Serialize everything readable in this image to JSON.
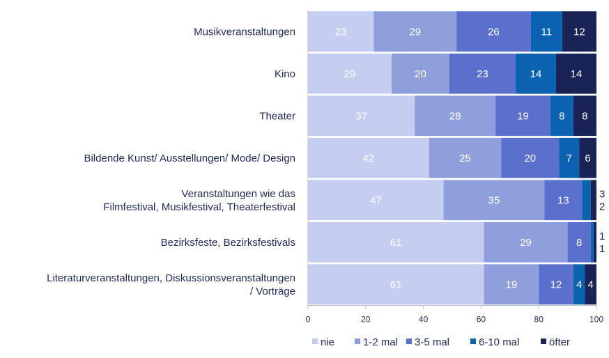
{
  "chart_data": {
    "type": "bar",
    "orientation": "horizontal",
    "stacked": true,
    "categories": [
      [
        "Musikveranstaltungen"
      ],
      [
        "Kino"
      ],
      [
        "Theater"
      ],
      [
        "Bildende Kunst/ Ausstellungen/ Mode/ Design"
      ],
      [
        "Veranstaltungen wie das",
        "Filmfestival, Musikfestival, Theaterfestival"
      ],
      [
        "Bezirksfeste, Bezirksfestivals"
      ],
      [
        "Literaturveranstaltungen, Diskussionsveranstaltungen",
        "/ Vorträge"
      ]
    ],
    "series": [
      {
        "name": "nie",
        "color": "#c5cdf0",
        "values": [
          23,
          29,
          37,
          42,
          47,
          61,
          61
        ]
      },
      {
        "name": "1-2 mal",
        "color": "#8f9fdc",
        "values": [
          29,
          20,
          28,
          25,
          35,
          29,
          19
        ]
      },
      {
        "name": "3-5 mal",
        "color": "#5b6fcc",
        "values": [
          26,
          23,
          19,
          20,
          13,
          8,
          12
        ]
      },
      {
        "name": "6-10 mal",
        "color": "#0a62b0",
        "values": [
          11,
          14,
          8,
          7,
          3,
          1,
          4
        ]
      },
      {
        "name": "öfter",
        "color": "#1a2356",
        "values": [
          12,
          14,
          8,
          6,
          2,
          1,
          4
        ]
      }
    ],
    "xlim": [
      0,
      100
    ],
    "xticks": [
      "0",
      "20",
      "40",
      "60",
      "80",
      "100"
    ],
    "grid": false,
    "legend": "bottom",
    "data_labels": true
  }
}
